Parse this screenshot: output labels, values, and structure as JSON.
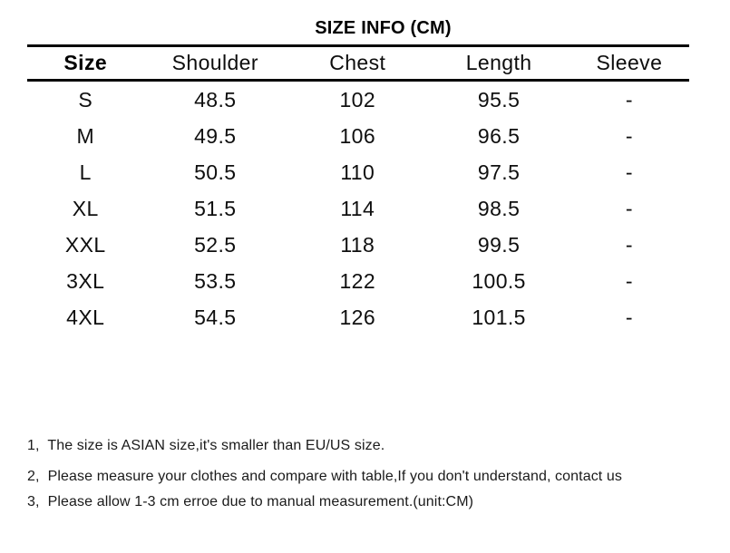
{
  "title": "SIZE INFO (CM)",
  "table": {
    "headers": [
      "Size",
      "Shoulder",
      "Chest",
      "Length",
      "Sleeve"
    ],
    "rows": [
      [
        "S",
        "48.5",
        "102",
        "95.5",
        "-"
      ],
      [
        "M",
        "49.5",
        "106",
        "96.5",
        "-"
      ],
      [
        "L",
        "50.5",
        "110",
        "97.5",
        "-"
      ],
      [
        "XL",
        "51.5",
        "114",
        "98.5",
        "-"
      ],
      [
        "XXL",
        "52.5",
        "118",
        "99.5",
        "-"
      ],
      [
        "3XL",
        "53.5",
        "122",
        "100.5",
        "-"
      ],
      [
        "4XL",
        "54.5",
        "126",
        "101.5",
        "-"
      ]
    ]
  },
  "notes": [
    "1、The size is ASIAN size,it's smaller than EU/US size.",
    "2、Please measure your clothes and compare with table,If you don't understand, contact us",
    "3、Please allow 1-3 cm erroe due to manual measurement.(unit:CM)"
  ],
  "colors": {
    "background": "#ffffff",
    "text": "#0f0f0f",
    "rule": "#050505"
  }
}
